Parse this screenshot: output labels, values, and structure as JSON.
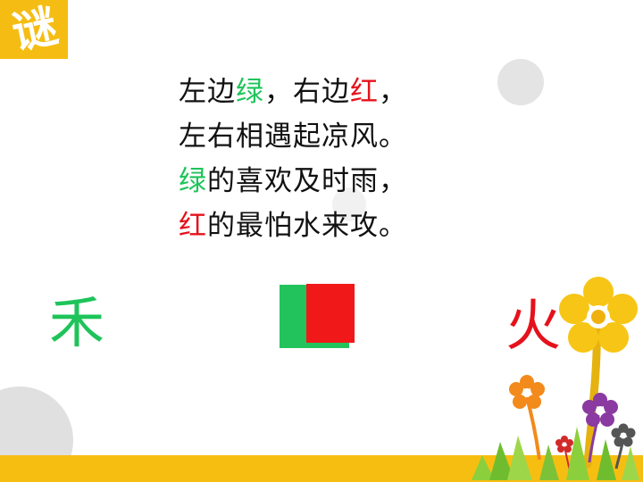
{
  "badge": {
    "char": "谜"
  },
  "poem": {
    "line1": {
      "part1": "左边",
      "green": "绿",
      "part2": "，右边",
      "red": "红",
      "part3": "，"
    },
    "line2": {
      "text": "左右相遇起凉风。"
    },
    "line3": {
      "green": "绿",
      "text": "的喜欢及时雨，"
    },
    "line4": {
      "red": "红",
      "text": "的最怕水来攻。"
    }
  },
  "answers": {
    "left": "禾",
    "right": "火"
  },
  "colors": {
    "green": "#1ec45a",
    "red": "#e5121b",
    "accent_yellow": "#f7be12",
    "circle_gray": "#e2e2e2"
  },
  "icons": [
    "flower-decoration"
  ]
}
